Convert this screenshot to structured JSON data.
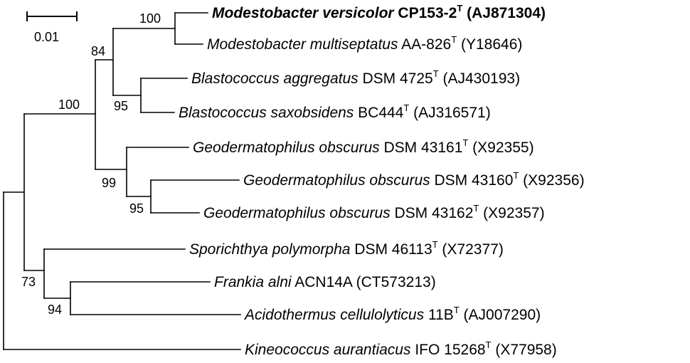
{
  "scale_bar": {
    "label": "0.01"
  },
  "taxa": [
    {
      "key": "mv",
      "genus_species": "Modestobacter versicolor",
      "strain": "CP153-2",
      "type_strain": true,
      "accession": "(AJ871304)",
      "highlight": true
    },
    {
      "key": "mm",
      "genus_species": "Modestobacter multiseptatus",
      "strain": "AA-826",
      "type_strain": true,
      "accession": "(Y18646)",
      "highlight": false
    },
    {
      "key": "ba",
      "genus_species": "Blastococcus aggregatus",
      "strain": "DSM 4725",
      "type_strain": true,
      "accession": "(AJ430193)",
      "highlight": false
    },
    {
      "key": "bs",
      "genus_species": "Blastococcus saxobsidens",
      "strain": "BC444",
      "type_strain": true,
      "accession": "(AJ316571)",
      "highlight": false
    },
    {
      "key": "go1",
      "genus_species": "Geodermatophilus obscurus",
      "strain": "DSM 43161",
      "type_strain": true,
      "accession": "(X92355)",
      "highlight": false
    },
    {
      "key": "go2",
      "genus_species": "Geodermatophilus obscurus",
      "strain": "DSM 43160",
      "type_strain": true,
      "accession": "(X92356)",
      "highlight": false
    },
    {
      "key": "go3",
      "genus_species": "Geodermatophilus obscurus",
      "strain": "DSM 43162",
      "type_strain": true,
      "accession": "(X92357)",
      "highlight": false
    },
    {
      "key": "sp",
      "genus_species": "Sporichthya polymorpha",
      "strain": "DSM 46113",
      "type_strain": true,
      "accession": "(X72377)",
      "highlight": false
    },
    {
      "key": "fa",
      "genus_species": "Frankia alni",
      "strain": "ACN14A",
      "type_strain": false,
      "accession": "(CT573213)",
      "highlight": false
    },
    {
      "key": "ac",
      "genus_species": "Acidothermus cellulolyticus",
      "strain": "11B",
      "type_strain": true,
      "accession": "(AJ007290)",
      "highlight": false
    },
    {
      "key": "ka",
      "genus_species": "Kineococcus aurantiacus",
      "strain": "IFO 15268",
      "type_strain": true,
      "accession": "(X77958)",
      "highlight": false
    }
  ],
  "type_strain_marker": "T",
  "support_values": [
    {
      "node": "modestobacter",
      "value": "100"
    },
    {
      "node": "modestobacter-blastococcus",
      "value": "84"
    },
    {
      "node": "blastococcus",
      "value": "95"
    },
    {
      "node": "geodermatophilaceae",
      "value": "100"
    },
    {
      "node": "geodermatophilus",
      "value": "99"
    },
    {
      "node": "geodermatophilus-subclade",
      "value": "95"
    },
    {
      "node": "frankiales-outer",
      "value": "73"
    },
    {
      "node": "frankia-acidothermus",
      "value": "94"
    }
  ]
}
